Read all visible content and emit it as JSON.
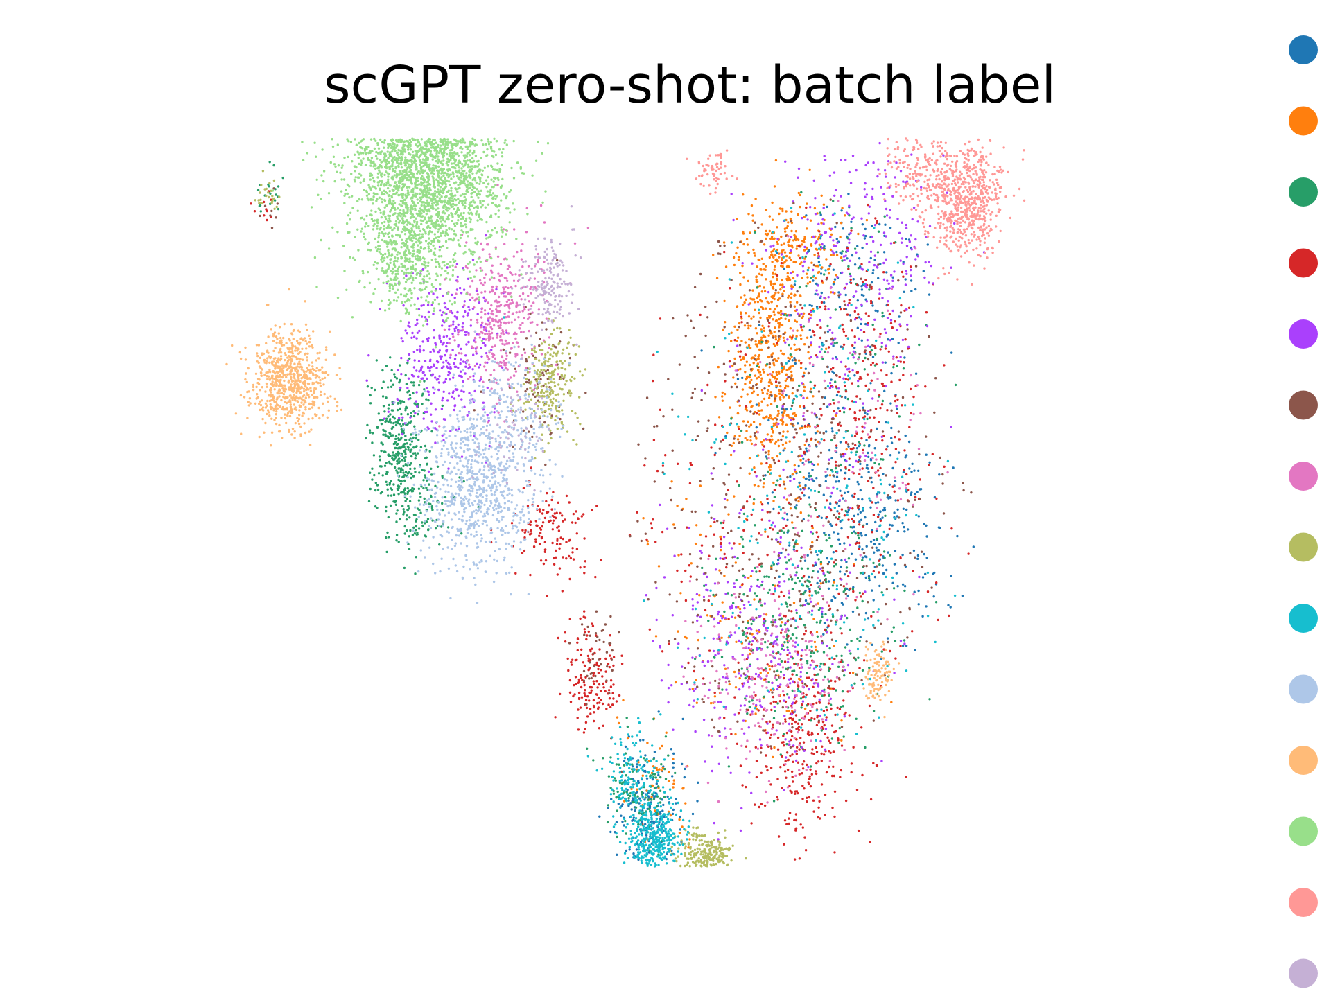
{
  "chart_data": {
    "type": "scatter",
    "title": "scGPT zero-shot: batch label",
    "xlabel": "",
    "ylabel": "",
    "axes_visible": false,
    "grid": false,
    "legend_position": "right",
    "series": [
      {
        "color": "#1f77b4",
        "clusters": [
          {
            "cx": 0.59,
            "cy": -0.1,
            "sx": 0.12,
            "sy": 0.11,
            "n": 260
          },
          {
            "cx": 0.45,
            "cy": 0.08,
            "sx": 0.12,
            "sy": 0.15,
            "n": 160
          },
          {
            "cx": 0.54,
            "cy": 0.4,
            "sx": 0.11,
            "sy": 0.08,
            "n": 120
          },
          {
            "cx": -0.1,
            "cy": -0.62,
            "sx": 0.05,
            "sy": 0.06,
            "n": 200
          }
        ]
      },
      {
        "color": "#ff7f0e",
        "clusters": [
          {
            "cx": 0.28,
            "cy": 0.25,
            "sx": 0.06,
            "sy": 0.13,
            "n": 620
          },
          {
            "cx": 0.35,
            "cy": 0.45,
            "sx": 0.08,
            "sy": 0.05,
            "n": 200
          },
          {
            "cx": 0.2,
            "cy": -0.3,
            "sx": 0.2,
            "sy": 0.18,
            "n": 140
          },
          {
            "cx": -0.05,
            "cy": -0.57,
            "sx": 0.04,
            "sy": 0.05,
            "n": 50
          }
        ]
      },
      {
        "color": "#279e68",
        "clusters": [
          {
            "cx": -0.86,
            "cy": 0.08,
            "sx": 0.04,
            "sy": 0.07,
            "n": 360
          },
          {
            "cx": -0.8,
            "cy": -0.04,
            "sx": 0.06,
            "sy": 0.05,
            "n": 120
          },
          {
            "cx": 0.38,
            "cy": -0.26,
            "sx": 0.14,
            "sy": 0.11,
            "n": 320
          },
          {
            "cx": 0.47,
            "cy": 0.25,
            "sx": 0.15,
            "sy": 0.2,
            "n": 120
          },
          {
            "cx": -0.13,
            "cy": -0.57,
            "sx": 0.05,
            "sy": 0.05,
            "n": 110
          },
          {
            "cx": -1.26,
            "cy": 0.55,
            "sx": 0.02,
            "sy": 0.02,
            "n": 20
          }
        ]
      },
      {
        "color": "#d62728",
        "clusters": [
          {
            "cx": 0.38,
            "cy": -0.49,
            "sx": 0.08,
            "sy": 0.1,
            "n": 320
          },
          {
            "cx": 0.58,
            "cy": 0.2,
            "sx": 0.09,
            "sy": 0.18,
            "n": 240
          },
          {
            "cx": 0.3,
            "cy": -0.1,
            "sx": 0.25,
            "sy": 0.25,
            "n": 260
          },
          {
            "cx": -0.27,
            "cy": -0.36,
            "sx": 0.04,
            "sy": 0.05,
            "n": 160
          },
          {
            "cx": -0.39,
            "cy": -0.09,
            "sx": 0.06,
            "sy": 0.05,
            "n": 130
          },
          {
            "cx": -1.27,
            "cy": 0.52,
            "sx": 0.02,
            "sy": 0.02,
            "n": 10
          }
        ]
      },
      {
        "color": "#aa40fc",
        "clusters": [
          {
            "cx": -0.72,
            "cy": 0.25,
            "sx": 0.08,
            "sy": 0.08,
            "n": 380
          },
          {
            "cx": 0.23,
            "cy": -0.31,
            "sx": 0.14,
            "sy": 0.12,
            "n": 320
          },
          {
            "cx": 0.55,
            "cy": 0.44,
            "sx": 0.13,
            "sy": 0.12,
            "n": 260
          },
          {
            "cx": 0.4,
            "cy": 0.1,
            "sx": 0.2,
            "sy": 0.25,
            "n": 100
          }
        ]
      },
      {
        "color": "#8c564b",
        "clusters": [
          {
            "cx": 0.3,
            "cy": 0.0,
            "sx": 0.25,
            "sy": 0.3,
            "n": 450
          },
          {
            "cx": -0.43,
            "cy": 0.2,
            "sx": 0.06,
            "sy": 0.06,
            "n": 80
          },
          {
            "cx": -0.25,
            "cy": -0.33,
            "sx": 0.04,
            "sy": 0.05,
            "n": 40
          },
          {
            "cx": -1.26,
            "cy": 0.53,
            "sx": 0.02,
            "sy": 0.02,
            "n": 8
          }
        ]
      },
      {
        "color": "#e377c2",
        "clusters": [
          {
            "cx": -0.55,
            "cy": 0.32,
            "sx": 0.07,
            "sy": 0.08,
            "n": 400
          },
          {
            "cx": 0.25,
            "cy": -0.36,
            "sx": 0.12,
            "sy": 0.1,
            "n": 220
          },
          {
            "cx": 0.5,
            "cy": 0.1,
            "sx": 0.15,
            "sy": 0.2,
            "n": 100
          }
        ]
      },
      {
        "color": "#b5bd61",
        "clusters": [
          {
            "cx": -0.4,
            "cy": 0.19,
            "sx": 0.04,
            "sy": 0.05,
            "n": 240
          },
          {
            "cx": 0.08,
            "cy": -0.72,
            "sx": 0.04,
            "sy": 0.03,
            "n": 220
          },
          {
            "cx": -1.27,
            "cy": 0.55,
            "sx": 0.015,
            "sy": 0.015,
            "n": 25
          }
        ]
      },
      {
        "color": "#17becf",
        "clusters": [
          {
            "cx": -0.08,
            "cy": -0.67,
            "sx": 0.04,
            "sy": 0.03,
            "n": 320
          },
          {
            "cx": -0.14,
            "cy": -0.57,
            "sx": 0.05,
            "sy": 0.05,
            "n": 160
          },
          {
            "cx": 0.4,
            "cy": 0.0,
            "sx": 0.22,
            "sy": 0.28,
            "n": 220
          }
        ]
      },
      {
        "color": "#aec7e8",
        "clusters": [
          {
            "cx": -0.62,
            "cy": 0.0,
            "sx": 0.09,
            "sy": 0.08,
            "n": 820
          },
          {
            "cx": -0.5,
            "cy": 0.15,
            "sx": 0.07,
            "sy": 0.06,
            "n": 160
          }
        ]
      },
      {
        "color": "#ffbb78",
        "clusters": [
          {
            "cx": -1.2,
            "cy": 0.2,
            "sx": 0.06,
            "sy": 0.045,
            "n": 720
          },
          {
            "cx": 0.61,
            "cy": -0.36,
            "sx": 0.02,
            "sy": 0.025,
            "n": 100
          }
        ]
      },
      {
        "color": "#98df8a",
        "clusters": [
          {
            "cx": -0.78,
            "cy": 0.62,
            "sx": 0.12,
            "sy": 0.11,
            "n": 2100
          },
          {
            "cx": -0.85,
            "cy": 0.42,
            "sx": 0.05,
            "sy": 0.05,
            "n": 260
          }
        ]
      },
      {
        "color": "#ff9896",
        "clusters": [
          {
            "cx": 0.88,
            "cy": 0.55,
            "sx": 0.06,
            "sy": 0.055,
            "n": 700
          },
          {
            "cx": 0.72,
            "cy": 0.6,
            "sx": 0.05,
            "sy": 0.04,
            "n": 150
          },
          {
            "cx": 0.1,
            "cy": 0.6,
            "sx": 0.03,
            "sy": 0.02,
            "n": 60
          }
        ]
      },
      {
        "color": "#c5b0d5",
        "clusters": [
          {
            "cx": -0.4,
            "cy": 0.38,
            "sx": 0.04,
            "sy": 0.04,
            "n": 170
          },
          {
            "cx": -0.5,
            "cy": 0.1,
            "sx": 0.06,
            "sy": 0.06,
            "n": 60
          }
        ]
      }
    ]
  }
}
